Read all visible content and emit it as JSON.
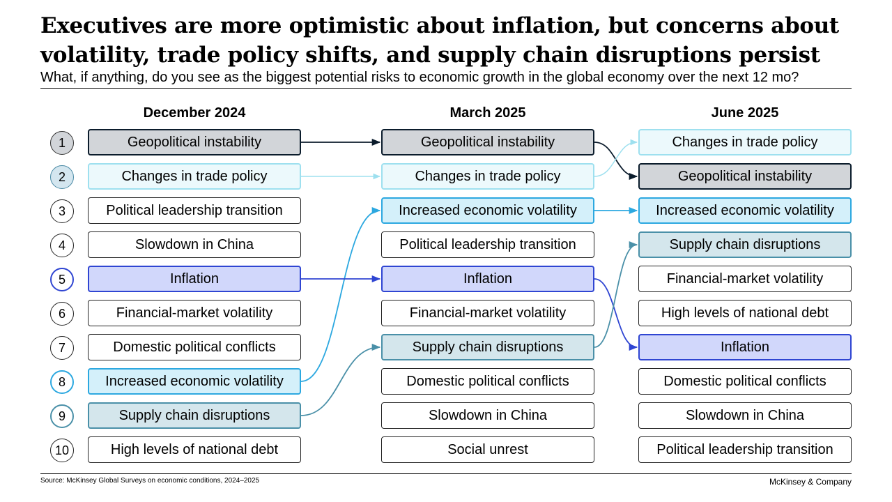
{
  "header": {
    "title_line1": "Executives are more optimistic about inflation, but concerns about",
    "title_line2": "volatility, trade policy shifts, and supply chain disruptions persist",
    "subtitle": "What, if anything, do you see as the biggest potential risks to economic growth in the global economy over the next 12 mo?"
  },
  "ranks": [
    "1",
    "2",
    "3",
    "4",
    "5",
    "6",
    "7",
    "8",
    "9",
    "10"
  ],
  "columns": [
    {
      "label": "December 2024",
      "items": [
        "Geopolitical instability",
        "Changes in trade policy",
        "Political leadership transition",
        "Slowdown in China",
        "Inflation",
        "Financial-market volatility",
        "Domestic political conflicts",
        "Increased economic volatility",
        "Supply chain disruptions",
        "High levels of national debt"
      ]
    },
    {
      "label": "March 2025",
      "items": [
        "Geopolitical instability",
        "Changes in trade policy",
        "Increased economic volatility",
        "Political leadership transition",
        "Inflation",
        "Financial-market volatility",
        "Supply chain disruptions",
        "Domestic political conflicts",
        "Slowdown in China",
        "Social unrest"
      ]
    },
    {
      "label": "June 2025",
      "items": [
        "Changes in trade policy",
        "Geopolitical instability",
        "Increased economic volatility",
        "Supply chain disruptions",
        "Financial-market volatility",
        "High levels of national debt",
        "Inflation",
        "Domestic political conflicts",
        "Slowdown in China",
        "Political leadership transition"
      ]
    }
  ],
  "highlight_colors": {
    "Geopolitical instability": "#0b1c2c",
    "Changes in trade policy": "#9ee0ef",
    "Increased economic volatility": "#2ca8e0",
    "Inflation": "#2f45d2",
    "Supply chain disruptions": "#4a90a8"
  },
  "footer": {
    "source": "Source: McKinsey Global Surveys on economic conditions, 2024–2025",
    "brand": "McKinsey & Company"
  }
}
